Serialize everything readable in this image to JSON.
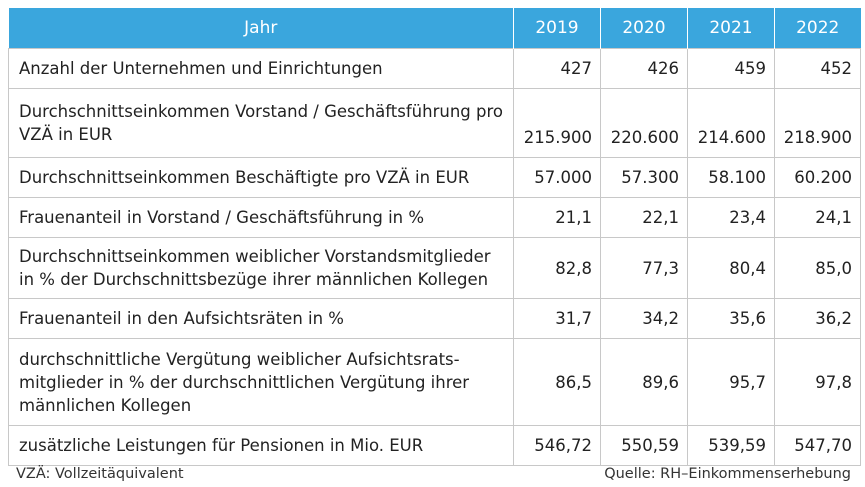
{
  "table": {
    "header": {
      "label": "Jahr",
      "years": [
        "2019",
        "2020",
        "2021",
        "2022"
      ]
    },
    "rows": [
      {
        "label": "Anzahl der Unternehmen und Einrichtungen",
        "values": [
          "427",
          "426",
          "459",
          "452"
        ]
      },
      {
        "label": "Durchschnittseinkommen Vorstand / Geschäftsführung pro VZÄ in EUR",
        "values": [
          "215.900",
          "220.600",
          "214.600",
          "218.900"
        ]
      },
      {
        "label": "Durchschnittseinkommen Beschäftigte pro VZÄ in EUR",
        "values": [
          "57.000",
          "57.300",
          "58.100",
          "60.200"
        ]
      },
      {
        "label": "Frauenanteil in Vorstand / Geschäftsführung in %",
        "values": [
          "21,1",
          "22,1",
          "23,4",
          "24,1"
        ]
      },
      {
        "label": "Durchschnittseinkommen weiblicher Vorstandsmitglieder in % der Durchschnittsbezüge ihrer männlichen Kollegen",
        "values": [
          "82,8",
          "77,3",
          "80,4",
          "85,0"
        ]
      },
      {
        "label": "Frauenanteil in den Aufsichtsräten in %",
        "values": [
          "31,7",
          "34,2",
          "35,6",
          "36,2"
        ]
      },
      {
        "label": "durchschnittliche Vergütung weiblicher Aufsichtsrats-mitglieder in % der durchschnittlichen Vergütung ihrer männlichen Kollegen",
        "values": [
          "86,5",
          "89,6",
          "95,7",
          "97,8"
        ]
      },
      {
        "label": "zusätzliche Leistungen für Pensionen in Mio. EUR",
        "values": [
          "546,72",
          "550,59",
          "539,59",
          "547,70"
        ]
      }
    ]
  },
  "footer": {
    "note": "VZÄ: Vollzeitäquivalent",
    "source": "Quelle: RH–Einkommenserhebung"
  },
  "colors": {
    "header_background": "#3aa6dd",
    "header_text": "#ffffff",
    "grid_lines": "#c8c8c8"
  }
}
